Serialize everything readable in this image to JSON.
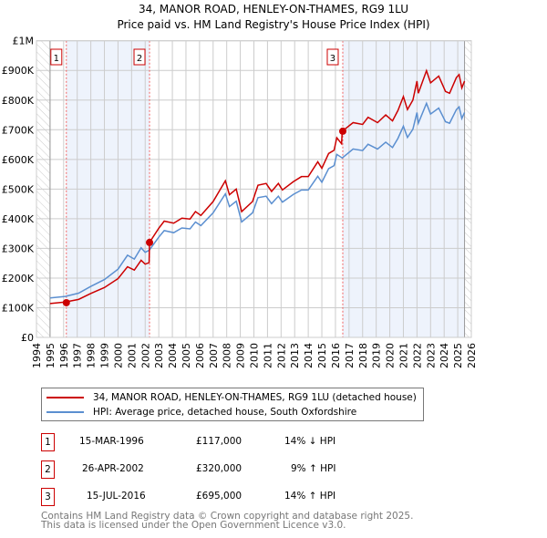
{
  "chart_data": {
    "type": "line",
    "title": "34, MANOR ROAD, HENLEY-ON-THAMES, RG9 1LU",
    "subtitle": "Price paid vs. HM Land Registry's House Price Index (HPI)",
    "xlim": [
      1994,
      2026
    ],
    "ylim": [
      0,
      1000000
    ],
    "x_ticks": [
      "1994",
      "1995",
      "1996",
      "1997",
      "1998",
      "1999",
      "2000",
      "2001",
      "2002",
      "2003",
      "2004",
      "2005",
      "2006",
      "2007",
      "2008",
      "2009",
      "2010",
      "2011",
      "2012",
      "2013",
      "2014",
      "2015",
      "2016",
      "2017",
      "2018",
      "2019",
      "2020",
      "2021",
      "2022",
      "2023",
      "2024",
      "2025",
      "2026"
    ],
    "y_ticks": [
      {
        "v": 0,
        "label": "£0"
      },
      {
        "v": 100000,
        "label": "£100K"
      },
      {
        "v": 200000,
        "label": "£200K"
      },
      {
        "v": 300000,
        "label": "£300K"
      },
      {
        "v": 400000,
        "label": "£400K"
      },
      {
        "v": 500000,
        "label": "£500K"
      },
      {
        "v": 600000,
        "label": "£600K"
      },
      {
        "v": 700000,
        "label": "£700K"
      },
      {
        "v": 800000,
        "label": "£800K"
      },
      {
        "v": 900000,
        "label": "£900K"
      },
      {
        "v": 1000000,
        "label": "£1M"
      }
    ],
    "grid": true,
    "series": [
      {
        "name": "34, MANOR ROAD, HENLEY-ON-THAMES, RG9 1LU (detached house)",
        "color": "#cc0000",
        "x": [
          1995.0,
          1996.1,
          1997.1,
          1998.0,
          1999.0,
          2000.0,
          2000.7,
          2001.2,
          2001.7,
          2002.0,
          2002.29,
          2002.32,
          2003.0,
          2003.4,
          2004.1,
          2004.7,
          2005.3,
          2005.7,
          2006.1,
          2007.0,
          2007.9,
          2008.2,
          2008.7,
          2009.1,
          2009.9,
          2010.3,
          2010.9,
          2011.3,
          2011.8,
          2012.1,
          2012.9,
          2013.5,
          2014.0,
          2014.7,
          2015.0,
          2015.5,
          2015.9,
          2016.1,
          2016.45,
          2016.5,
          2017.3,
          2018.0,
          2018.4,
          2019.1,
          2019.7,
          2020.2,
          2020.6,
          2021.0,
          2021.3,
          2021.7,
          2022.0,
          2022.1,
          2022.7,
          2023.0,
          2023.6,
          2024.1,
          2024.4,
          2024.9,
          2025.1,
          2025.3,
          2025.5
        ],
        "y": [
          114000,
          119000,
          128000,
          148000,
          168000,
          198000,
          238000,
          227000,
          260000,
          247000,
          252000,
          320000,
          368000,
          392000,
          385000,
          402000,
          399000,
          424000,
          411000,
          458000,
          528000,
          481000,
          500000,
          424000,
          458000,
          513000,
          519000,
          492000,
          519000,
          497000,
          525000,
          542000,
          542000,
          592000,
          570000,
          620000,
          631000,
          673000,
          653000,
          695000,
          724000,
          718000,
          742000,
          724000,
          750000,
          730000,
          765000,
          812000,
          768000,
          800000,
          864000,
          823000,
          899000,
          858000,
          881000,
          829000,
          823000,
          876000,
          886000,
          841000,
          864000
        ]
      },
      {
        "name": "HPI: Average price, detached house, South Oxfordshire",
        "color": "#5b8fd0",
        "x": [
          1995.0,
          1996.1,
          1997.1,
          1998.0,
          1999.0,
          2000.0,
          2000.7,
          2001.2,
          2001.7,
          2002.0,
          2002.3,
          2003.0,
          2003.4,
          2004.1,
          2004.7,
          2005.3,
          2005.7,
          2006.1,
          2007.0,
          2007.9,
          2008.2,
          2008.7,
          2009.1,
          2009.9,
          2010.3,
          2010.9,
          2011.3,
          2011.8,
          2012.1,
          2012.9,
          2013.5,
          2014.0,
          2014.7,
          2015.0,
          2015.5,
          2015.9,
          2016.1,
          2016.5,
          2017.3,
          2018.0,
          2018.4,
          2019.1,
          2019.7,
          2020.2,
          2020.6,
          2021.0,
          2021.3,
          2021.7,
          2022.0,
          2022.1,
          2022.7,
          2023.0,
          2023.6,
          2024.1,
          2024.4,
          2024.9,
          2025.1,
          2025.3,
          2025.5
        ],
        "y": [
          133000,
          138000,
          149000,
          172000,
          195000,
          230000,
          277000,
          264000,
          302000,
          287000,
          294000,
          338000,
          360000,
          353000,
          369000,
          366000,
          389000,
          377000,
          420000,
          484000,
          441000,
          459000,
          389000,
          420000,
          471000,
          476000,
          451000,
          476000,
          456000,
          482000,
          497000,
          497000,
          543000,
          523000,
          569000,
          579000,
          617000,
          605000,
          635000,
          630000,
          651000,
          635000,
          658000,
          640000,
          671000,
          712000,
          674000,
          702000,
          758000,
          722000,
          789000,
          753000,
          773000,
          727000,
          722000,
          768000,
          777000,
          738000,
          758000
        ]
      }
    ],
    "sales": [
      {
        "n": "1",
        "x": 1996.2,
        "y": 117000,
        "date": "15-MAR-1996",
        "price": "£117,000",
        "hpi": "14% ↓ HPI"
      },
      {
        "n": "2",
        "x": 2002.32,
        "y": 320000,
        "date": "26-APR-2002",
        "price": "£320,000",
        "hpi": "9% ↑ HPI"
      },
      {
        "n": "3",
        "x": 2016.54,
        "y": 695000,
        "date": "15-JUL-2016",
        "price": "£695,000",
        "hpi": "14% ↑ HPI"
      }
    ],
    "data_range": [
      1995,
      2025.5
    ],
    "legend_placement": "bottom"
  },
  "footer": [
    "Contains HM Land Registry data © Crown copyright and database right 2025.",
    "This data is licensed under the Open Government Licence v3.0."
  ]
}
